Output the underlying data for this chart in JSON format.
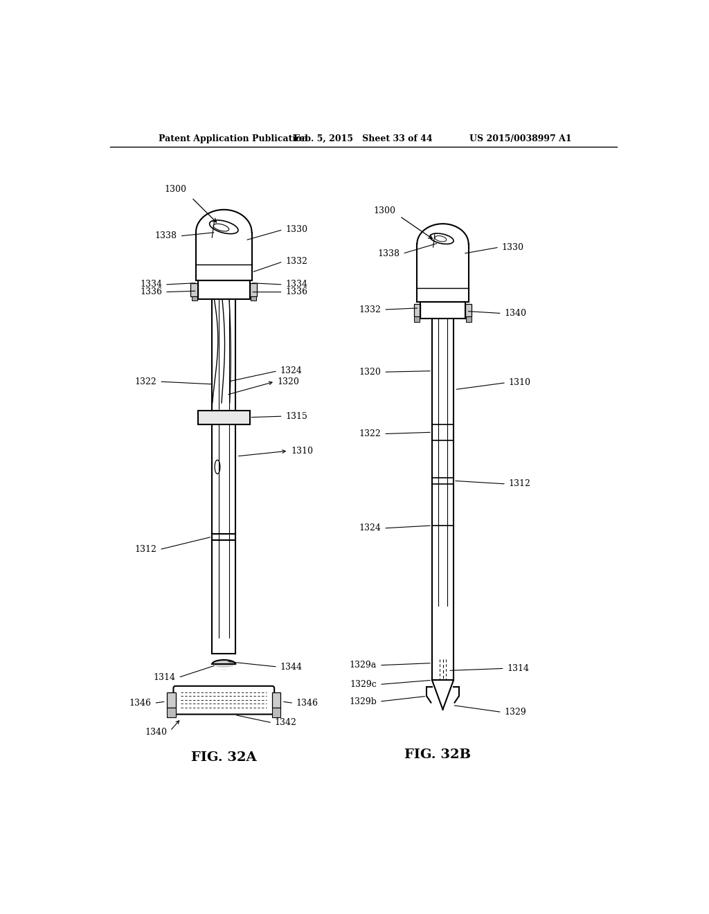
{
  "bg_color": "#ffffff",
  "header_left": "Patent Application Publication",
  "header_mid": "Feb. 5, 2015   Sheet 33 of 44",
  "header_right": "US 2015/0038997 A1",
  "fig_a_label": "FIG. 32A",
  "fig_b_label": "FIG. 32B"
}
